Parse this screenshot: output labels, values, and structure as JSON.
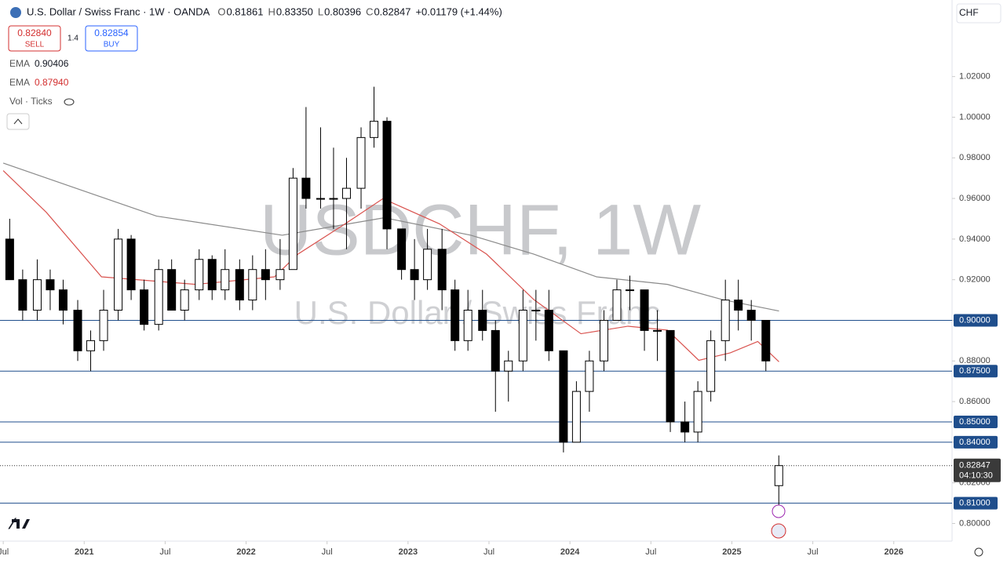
{
  "header": {
    "symbol": "U.S. Dollar / Swiss Franc · 1W · OANDA",
    "ohlc": [
      {
        "key": "O",
        "value": "0.81861"
      },
      {
        "key": "H",
        "value": "0.83350"
      },
      {
        "key": "L",
        "value": "0.80396"
      },
      {
        "key": "C",
        "value": "0.82847"
      }
    ],
    "change": "+0.01179 (+1.44%)",
    "sell_price": "0.82840",
    "sell": "SELL",
    "spread": "1.4",
    "buy_price": "0.82854",
    "buy": "BUY",
    "indicators": [
      {
        "name": "EMA",
        "value": "0.90406"
      },
      {
        "name": "EMA",
        "value": "0.87940"
      }
    ],
    "volume": "Vol · Ticks",
    "currency": "CHF",
    "watermark": "USDCHF, 1W",
    "watermark_sub": "U.S. Dollar / Swiss Franc"
  },
  "chart_data": {
    "type": "candlestick",
    "x": [
      2020.54,
      2020.62,
      2020.71,
      2020.79,
      2020.87,
      2020.96,
      2021.04,
      2021.12,
      2021.21,
      2021.29,
      2021.37,
      2021.46,
      2021.54,
      2021.62,
      2021.71,
      2021.79,
      2021.87,
      2021.96,
      2022.04,
      2022.12,
      2022.21,
      2022.29,
      2022.37,
      2022.46,
      2022.54,
      2022.62,
      2022.71,
      2022.79,
      2022.87,
      2022.96,
      2023.04,
      2023.12,
      2023.21,
      2023.29,
      2023.37,
      2023.46,
      2023.54,
      2023.62,
      2023.71,
      2023.79,
      2023.87,
      2023.96,
      2024.04,
      2024.12,
      2024.21,
      2024.29,
      2024.37,
      2024.46,
      2024.54,
      2024.62,
      2024.71,
      2024.79,
      2024.87,
      2024.96,
      2025.04,
      2025.12,
      2025.21,
      2025.29
    ],
    "open": [
      0.94,
      0.92,
      0.905,
      0.92,
      0.915,
      0.905,
      0.885,
      0.89,
      0.905,
      0.94,
      0.915,
      0.898,
      0.925,
      0.905,
      0.915,
      0.93,
      0.915,
      0.925,
      0.91,
      0.925,
      0.92,
      0.925,
      0.97,
      0.96,
      0.96,
      0.96,
      0.965,
      0.99,
      0.998,
      0.945,
      0.925,
      0.92,
      0.935,
      0.915,
      0.89,
      0.905,
      0.895,
      0.875,
      0.88,
      0.905,
      0.905,
      0.885,
      0.84,
      0.865,
      0.88,
      0.9,
      0.915,
      0.915,
      0.895,
      0.895,
      0.85,
      0.845,
      0.865,
      0.89,
      0.91,
      0.905,
      0.9,
      0.81861
    ],
    "high": [
      0.95,
      0.925,
      0.93,
      0.925,
      0.92,
      0.91,
      0.895,
      0.915,
      0.945,
      0.942,
      0.92,
      0.93,
      0.93,
      0.92,
      0.935,
      0.932,
      0.935,
      0.93,
      0.932,
      0.935,
      0.94,
      0.975,
      1.005,
      0.995,
      0.985,
      0.98,
      0.995,
      1.015,
      1.0,
      0.945,
      0.94,
      0.945,
      0.945,
      0.92,
      0.915,
      0.915,
      0.9,
      0.885,
      0.915,
      0.915,
      0.915,
      0.885,
      0.87,
      0.885,
      0.905,
      0.92,
      0.922,
      0.915,
      0.905,
      0.895,
      0.86,
      0.87,
      0.895,
      0.92,
      0.92,
      0.91,
      0.9,
      0.8335
    ],
    "low": [
      0.92,
      0.9,
      0.9,
      0.905,
      0.898,
      0.88,
      0.875,
      0.885,
      0.9,
      0.91,
      0.895,
      0.895,
      0.905,
      0.9,
      0.91,
      0.91,
      0.91,
      0.905,
      0.905,
      0.91,
      0.915,
      0.925,
      0.955,
      0.955,
      0.945,
      0.935,
      0.955,
      0.985,
      0.935,
      0.92,
      0.91,
      0.915,
      0.905,
      0.885,
      0.885,
      0.89,
      0.855,
      0.86,
      0.875,
      0.89,
      0.88,
      0.835,
      0.84,
      0.855,
      0.875,
      0.9,
      0.905,
      0.885,
      0.88,
      0.845,
      0.84,
      0.84,
      0.86,
      0.88,
      0.895,
      0.89,
      0.875,
      0.80396
    ],
    "close": [
      0.92,
      0.905,
      0.92,
      0.915,
      0.905,
      0.885,
      0.89,
      0.905,
      0.94,
      0.915,
      0.898,
      0.925,
      0.905,
      0.915,
      0.93,
      0.915,
      0.925,
      0.91,
      0.925,
      0.92,
      0.925,
      0.97,
      0.96,
      0.96,
      0.96,
      0.965,
      0.99,
      0.998,
      0.945,
      0.925,
      0.92,
      0.935,
      0.915,
      0.89,
      0.905,
      0.895,
      0.875,
      0.88,
      0.905,
      0.905,
      0.885,
      0.84,
      0.865,
      0.88,
      0.9,
      0.915,
      0.915,
      0.895,
      0.895,
      0.85,
      0.845,
      0.865,
      0.89,
      0.91,
      0.905,
      0.9,
      0.88,
      0.82847
    ],
    "lines": [
      {
        "name": "EMA 200",
        "color": "#8a8a8a",
        "x": [
          2020.5,
          2021.447,
          2022.223,
          2022.854,
          2023.388,
          2023.777,
          2024.165,
          2024.602,
          2024.942,
          2025.291
        ],
        "values": [
          0.9774,
          0.9513,
          0.9419,
          0.9505,
          0.9419,
          0.9326,
          0.9214,
          0.9177,
          0.9102,
          0.9046
        ]
      },
      {
        "name": "EMA 50",
        "color": "#d9534f",
        "x": [
          2020.5,
          2020.767,
          2021.107,
          2021.689,
          2022.175,
          2022.32,
          2022.612,
          2022.845,
          2023.194,
          2023.485,
          2023.777,
          2024.068,
          2024.359,
          2024.602,
          2024.796,
          2024.99,
          2025.16,
          2025.291
        ],
        "values": [
          0.9737,
          0.9531,
          0.9214,
          0.9177,
          0.9214,
          0.9326,
          0.9475,
          0.9599,
          0.9475,
          0.9326,
          0.9102,
          0.8934,
          0.8971,
          0.8952,
          0.8803,
          0.884,
          0.8896,
          0.8796
        ]
      }
    ],
    "levels": [
      {
        "value": 0.9,
        "label": "0.90000"
      },
      {
        "value": 0.875,
        "label": "0.87500"
      },
      {
        "value": 0.85,
        "label": "0.85000"
      },
      {
        "value": 0.84,
        "label": "0.84000"
      },
      {
        "value": 0.81,
        "label": "0.81000"
      }
    ],
    "level_color": "#1f4e8c",
    "last_price": {
      "value": 0.82847,
      "label": "0.82847",
      "countdown": "04:10:30"
    },
    "xlim": [
      2020.48,
      2026.36
    ],
    "ylim": [
      0.7913,
      1.0577
    ],
    "xticks": [
      {
        "value": 2020.5,
        "label": "Jul"
      },
      {
        "value": 2021,
        "label": "2021"
      },
      {
        "value": 2021.5,
        "label": "Jul"
      },
      {
        "value": 2022,
        "label": "2022"
      },
      {
        "value": 2022.5,
        "label": "Jul"
      },
      {
        "value": 2023,
        "label": "2023"
      },
      {
        "value": 2023.5,
        "label": "Jul"
      },
      {
        "value": 2024,
        "label": "2024"
      },
      {
        "value": 2024.5,
        "label": "Jul"
      },
      {
        "value": 2025,
        "label": "2025"
      },
      {
        "value": 2025.5,
        "label": "Jul"
      },
      {
        "value": 2026,
        "label": "2026"
      }
    ],
    "yticks": [
      {
        "value": 0.8,
        "label": "0.80000"
      },
      {
        "value": 0.82,
        "label": "0.82000"
      },
      {
        "value": 0.84,
        "label": "0.84000"
      },
      {
        "value": 0.86,
        "label": "0.86000"
      },
      {
        "value": 0.88,
        "label": "0.88000"
      },
      {
        "value": 0.9,
        "label": "0.90000"
      },
      {
        "value": 0.92,
        "label": "0.92000"
      },
      {
        "value": 0.94,
        "label": "0.94000"
      },
      {
        "value": 0.96,
        "label": "0.96000"
      },
      {
        "value": 0.98,
        "label": "0.98000"
      },
      {
        "value": 1.0,
        "label": "1.00000"
      },
      {
        "value": 1.02,
        "label": "1.02000"
      }
    ]
  }
}
